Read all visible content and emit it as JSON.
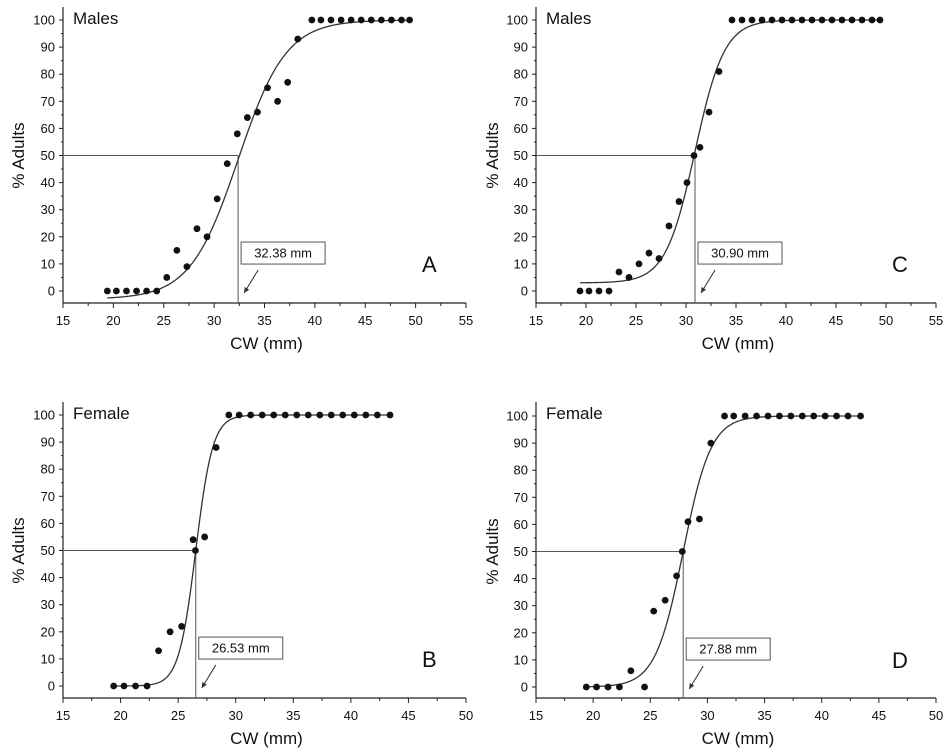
{
  "chart_data": [
    {
      "type": "scatter",
      "title": "Males",
      "panel_label": "A",
      "xlabel": "CW (mm)",
      "ylabel": "% Adults",
      "xlim": [
        15,
        55
      ],
      "ylim": [
        0,
        100
      ],
      "xticks": [
        15,
        20,
        25,
        30,
        35,
        40,
        45,
        50,
        55
      ],
      "yticks": [
        0,
        10,
        20,
        30,
        40,
        50,
        60,
        70,
        80,
        90,
        100
      ],
      "fit": {
        "type": "logistic",
        "l50": 32.38,
        "slope": 0.42,
        "ymin": -3
      },
      "l50_label": "32.38 mm",
      "points": {
        "x": [
          19.4,
          20.3,
          21.3,
          22.3,
          23.3,
          24.3,
          25.3,
          26.3,
          27.3,
          28.3,
          29.3,
          30.3,
          31.3,
          32.3,
          33.3,
          34.3,
          35.3,
          36.3,
          37.3,
          38.3,
          39.7,
          40.6,
          41.6,
          42.6,
          43.6,
          44.6,
          45.6,
          46.6,
          47.6,
          48.6,
          49.4
        ],
        "y": [
          0,
          0,
          0,
          0,
          0,
          0,
          5,
          15,
          9,
          23,
          20,
          34,
          47,
          58,
          64,
          66,
          75,
          70,
          77,
          93,
          100,
          100,
          100,
          100,
          100,
          100,
          100,
          100,
          100,
          100,
          100
        ]
      }
    },
    {
      "type": "scatter",
      "title": "Males",
      "panel_label": "C",
      "xlabel": "CW (mm)",
      "ylabel": "% Adults",
      "xlim": [
        15,
        55
      ],
      "ylim": [
        0,
        100
      ],
      "xticks": [
        15,
        20,
        25,
        30,
        35,
        40,
        45,
        50,
        55
      ],
      "yticks": [
        0,
        10,
        20,
        30,
        40,
        50,
        60,
        70,
        80,
        90,
        100
      ],
      "fit": {
        "type": "logistic",
        "l50": 30.9,
        "slope": 0.68,
        "ymin": 3
      },
      "l50_label": "30.90 mm",
      "points": {
        "x": [
          19.4,
          20.3,
          21.3,
          22.3,
          23.3,
          24.3,
          25.3,
          26.3,
          27.3,
          28.3,
          29.3,
          30.1,
          30.8,
          31.4,
          32.3,
          33.3,
          34.6,
          35.6,
          36.6,
          37.6,
          38.6,
          39.6,
          40.6,
          41.6,
          42.6,
          43.6,
          44.6,
          45.6,
          46.6,
          47.6,
          48.6,
          49.4
        ],
        "y": [
          0,
          0,
          0,
          0,
          7,
          5,
          10,
          14,
          12,
          24,
          33,
          40,
          50,
          53,
          66,
          81,
          100,
          100,
          100,
          100,
          100,
          100,
          100,
          100,
          100,
          100,
          100,
          100,
          100,
          100,
          100,
          100
        ]
      }
    },
    {
      "type": "scatter",
      "title": "Female",
      "panel_label": "B",
      "xlabel": "CW (mm)",
      "ylabel": "% Adults",
      "xlim": [
        15,
        50
      ],
      "ylim": [
        0,
        100
      ],
      "xticks": [
        15,
        20,
        25,
        30,
        35,
        40,
        45,
        50
      ],
      "yticks": [
        0,
        10,
        20,
        30,
        40,
        50,
        60,
        70,
        80,
        90,
        100
      ],
      "fit": {
        "type": "logistic",
        "l50": 26.53,
        "slope": 1.35,
        "ymin": 0
      },
      "l50_label": "26.53 mm",
      "points": {
        "x": [
          19.4,
          20.3,
          21.3,
          22.3,
          23.3,
          24.3,
          25.3,
          26.3,
          26.5,
          27.3,
          28.3,
          29.4,
          30.3,
          31.3,
          32.3,
          33.3,
          34.3,
          35.3,
          36.3,
          37.3,
          38.3,
          39.3,
          40.3,
          41.3,
          42.3,
          43.4
        ],
        "y": [
          0,
          0,
          0,
          0,
          13,
          20,
          22,
          54,
          50,
          55,
          88,
          100,
          100,
          100,
          100,
          100,
          100,
          100,
          100,
          100,
          100,
          100,
          100,
          100,
          100,
          100
        ]
      }
    },
    {
      "type": "scatter",
      "title": "Female",
      "panel_label": "D",
      "xlabel": "CW (mm)",
      "ylabel": "% Adults",
      "xlim": [
        15,
        50
      ],
      "ylim": [
        0,
        100
      ],
      "xticks": [
        15,
        20,
        25,
        30,
        35,
        40,
        45,
        50
      ],
      "yticks": [
        0,
        10,
        20,
        30,
        40,
        50,
        60,
        70,
        80,
        90,
        100
      ],
      "fit": {
        "type": "logistic",
        "l50": 27.88,
        "slope": 0.82,
        "ymin": 0
      },
      "l50_label": "27.88 mm",
      "points": {
        "x": [
          19.4,
          20.3,
          21.3,
          22.3,
          23.3,
          24.5,
          25.3,
          26.3,
          27.3,
          27.8,
          28.3,
          29.3,
          30.3,
          31.5,
          32.3,
          33.3,
          34.3,
          35.3,
          36.3,
          37.3,
          38.3,
          39.3,
          40.3,
          41.3,
          42.3,
          43.4
        ],
        "y": [
          0,
          0,
          0,
          0,
          6,
          0,
          28,
          32,
          41,
          50,
          61,
          62,
          90,
          100,
          100,
          100,
          100,
          100,
          100,
          100,
          100,
          100,
          100,
          100,
          100,
          100
        ]
      }
    }
  ]
}
